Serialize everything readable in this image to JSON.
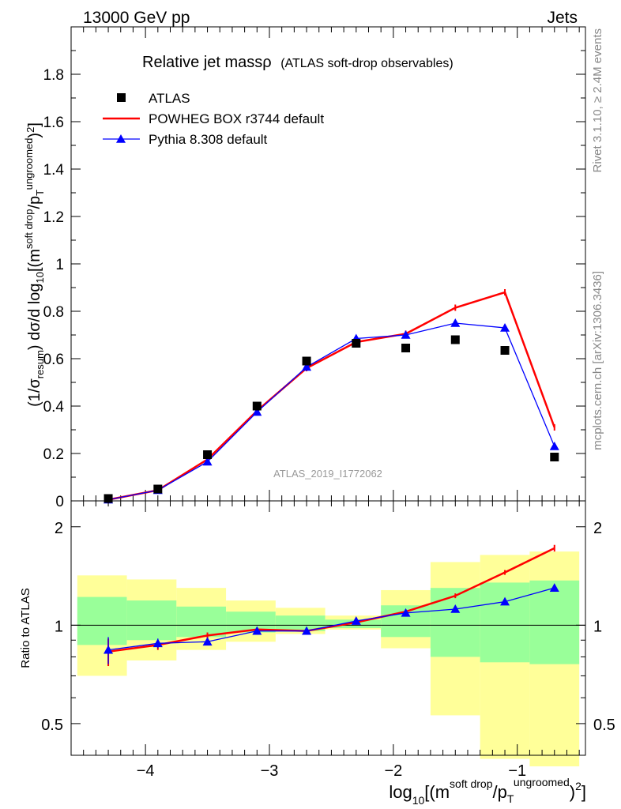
{
  "header": {
    "left": "13000 GeV pp",
    "right": "Jets"
  },
  "side": {
    "top": "Rivet 3.1.10, ≥ 2.4M events",
    "bottom": "mcplots.cern.ch [arXiv:1306.3436]"
  },
  "colors": {
    "atlas": "#000000",
    "powheg": "#ff0000",
    "pythia": "#0000ff",
    "band_yellow": "#ffff99",
    "band_green": "#99ff99"
  },
  "chart_data": [
    {
      "type": "line",
      "title": "Relative jet massρ",
      "subtitle": "(ATLAS soft-drop observables)",
      "watermark": "ATLAS_2019_I1772062",
      "ylabel": "(1/σresum) dσ/d log10[(m^soft drop/pT^ungroomed)^2]",
      "xlim": [
        -4.6,
        -0.45
      ],
      "ylim": [
        0,
        2.0
      ],
      "yticks": [
        "0",
        "0.2",
        "0.4",
        "0.6",
        "0.8",
        "1",
        "1.2",
        "1.4",
        "1.6",
        "1.8"
      ],
      "legend": [
        "ATLAS",
        "POWHEG BOX r3744 default",
        "Pythia 8.308 default"
      ],
      "legend_placement": "top-left",
      "x": [
        -4.3,
        -3.9,
        -3.5,
        -3.1,
        -2.7,
        -2.3,
        -1.9,
        -1.5,
        -1.1,
        -0.7
      ],
      "series": [
        {
          "name": "ATLAS",
          "marker": "square",
          "values": [
            0.01,
            0.05,
            0.195,
            0.4,
            0.59,
            0.665,
            0.645,
            0.68,
            0.635,
            0.185
          ]
        },
        {
          "name": "POWHEG BOX r3744 default",
          "marker": "line",
          "values": [
            0.005,
            0.045,
            0.175,
            0.38,
            0.56,
            0.67,
            0.705,
            0.815,
            0.88,
            0.31
          ]
        },
        {
          "name": "Pythia 8.308 default",
          "marker": "triangle",
          "values": [
            0.005,
            0.045,
            0.165,
            0.375,
            0.565,
            0.685,
            0.7,
            0.75,
            0.73,
            0.23
          ]
        }
      ]
    },
    {
      "type": "line",
      "ylabel": "Ratio to ATLAS",
      "xlabel": "log10[(m^soft drop/pT^ungroomed)^2]",
      "scale": "log",
      "ylim": [
        0.4,
        2.4
      ],
      "yticks": [
        "0.5",
        "1",
        "2"
      ],
      "xticks": [
        "−4",
        "−3",
        "−2",
        "−1"
      ],
      "bins": [
        -4.55,
        -4.15,
        -3.75,
        -3.35,
        -2.95,
        -2.55,
        -2.1,
        -1.7,
        -1.3,
        -0.9,
        -0.5
      ],
      "band_yellow": [
        [
          0.7,
          1.42
        ],
        [
          0.78,
          1.38
        ],
        [
          0.84,
          1.3
        ],
        [
          0.89,
          1.19
        ],
        [
          0.94,
          1.13
        ],
        [
          0.97,
          1.07
        ],
        [
          0.85,
          1.28
        ],
        [
          0.53,
          1.56
        ],
        [
          0.39,
          1.64
        ],
        [
          0.37,
          1.68
        ]
      ],
      "band_green": [
        [
          0.87,
          1.22
        ],
        [
          0.9,
          1.19
        ],
        [
          0.92,
          1.14
        ],
        [
          0.95,
          1.1
        ],
        [
          0.96,
          1.07
        ],
        [
          0.98,
          1.04
        ],
        [
          0.92,
          1.15
        ],
        [
          0.8,
          1.3
        ],
        [
          0.77,
          1.35
        ],
        [
          0.76,
          1.37
        ]
      ],
      "x": [
        -4.3,
        -3.9,
        -3.5,
        -3.1,
        -2.7,
        -2.3,
        -1.9,
        -1.5,
        -1.1,
        -0.7
      ],
      "series": [
        {
          "name": "POWHEG BOX r3744 default",
          "values": [
            0.83,
            0.87,
            0.93,
            0.97,
            0.96,
            1.02,
            1.1,
            1.23,
            1.45,
            1.72
          ],
          "errors": [
            0.08,
            0.03,
            0.02,
            0.01,
            0.01,
            0.01,
            0.01,
            0.01,
            0.02,
            0.04
          ]
        },
        {
          "name": "Pythia 8.308 default",
          "values": [
            0.84,
            0.88,
            0.89,
            0.96,
            0.96,
            1.03,
            1.09,
            1.12,
            1.18,
            1.3
          ],
          "errors": [
            0.08,
            0.03,
            0.0,
            0.0,
            0.0,
            0.0,
            0.0,
            0.0,
            0.0,
            0.0
          ]
        }
      ]
    }
  ]
}
